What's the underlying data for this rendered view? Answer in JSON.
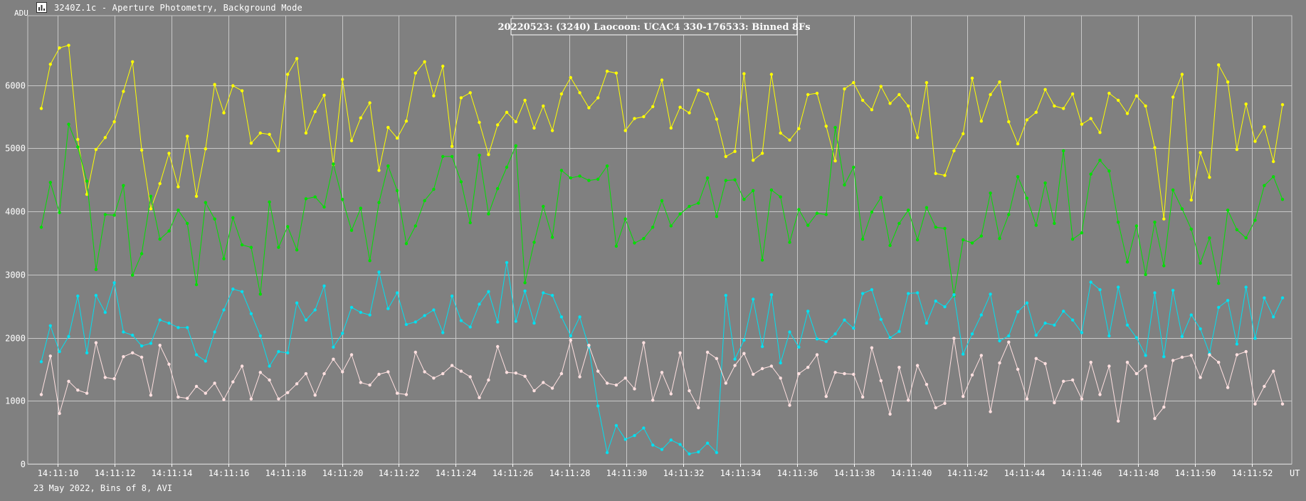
{
  "window": {
    "title": "3240Z.1c - Aperture Photometry, Background Mode",
    "icon": "chart-icon"
  },
  "footer": {
    "note": "23 May 2022, Bins of 8, AVI"
  },
  "colors": {
    "background": "#808080",
    "grid": "#c8c8c8",
    "text": "#ffffff"
  },
  "chart_data": {
    "type": "line",
    "title": "20220523: (3240) Laocoon: UCAC4 330-176533: Binned 8Fs",
    "ylabel": "ADU",
    "xlabel": "UT",
    "ylim": [
      0,
      7100
    ],
    "yticks": [
      0,
      1000,
      2000,
      3000,
      4000,
      5000,
      6000
    ],
    "xticks": [
      "14:11:10",
      "14:11:12",
      "14:11:14",
      "14:11:16",
      "14:11:18",
      "14:11:20",
      "14:11:22",
      "14:11:24",
      "14:11:26",
      "14:11:28",
      "14:11:30",
      "14:11:32",
      "14:11:34",
      "14:11:36",
      "14:11:38",
      "14:11:40",
      "14:11:42",
      "14:11:44",
      "14:11:46",
      "14:11:48",
      "14:11:50",
      "14:11:52"
    ],
    "grid": true,
    "series": [
      {
        "color": "#ffff00",
        "values": [
          5630,
          6330,
          6590,
          6630,
          5140,
          4270,
          4980,
          5170,
          5420,
          5900,
          6370,
          4970,
          4040,
          4440,
          4920,
          4390,
          5190,
          4240,
          4990,
          6010,
          5560,
          5990,
          5910,
          5080,
          5240,
          5220,
          4960,
          6170,
          6420,
          5240,
          5580,
          5840,
          4740,
          6090,
          5120,
          5480,
          5720,
          4650,
          5330,
          5160,
          5430,
          6190,
          6370,
          5830,
          6300,
          5030,
          5800,
          5880,
          5410,
          4900,
          5370,
          5570,
          5420,
          5760,
          5320,
          5670,
          5280,
          5860,
          6120,
          5880,
          5640,
          5800,
          6220,
          6190,
          5280,
          5470,
          5500,
          5660,
          6080,
          5320,
          5650,
          5560,
          5920,
          5860,
          5460,
          4870,
          4950,
          6180,
          4810,
          4920,
          6170,
          5240,
          5130,
          5310,
          5850,
          5870,
          5350,
          4800,
          5940,
          6040,
          5760,
          5610,
          5980,
          5710,
          5850,
          5670,
          5170,
          6040,
          4600,
          4570,
          4960,
          5230,
          6110,
          5430,
          5850,
          6050,
          5420,
          5070,
          5450,
          5570,
          5930,
          5670,
          5630,
          5860,
          5380,
          5470,
          5250,
          5870,
          5760,
          5550,
          5830,
          5670,
          5010,
          3880,
          5810,
          6170,
          4180,
          4930,
          4540,
          6320,
          6050,
          4980,
          5700,
          5110,
          5340,
          4790,
          5690
        ]
      },
      {
        "color": "#00e000",
        "values": [
          3750,
          4460,
          3980,
          5380,
          5020,
          4480,
          3080,
          3950,
          3940,
          4410,
          2990,
          3330,
          4240,
          3560,
          3690,
          4020,
          3810,
          2840,
          4140,
          3880,
          3250,
          3900,
          3470,
          3430,
          2690,
          4150,
          3430,
          3760,
          3390,
          4200,
          4230,
          4070,
          4750,
          4190,
          3700,
          4050,
          3220,
          4140,
          4720,
          4330,
          3490,
          3770,
          4170,
          4350,
          4870,
          4870,
          4470,
          3820,
          4890,
          3960,
          4360,
          4700,
          5040,
          2870,
          3510,
          4080,
          3590,
          4650,
          4530,
          4560,
          4490,
          4510,
          4720,
          3450,
          3880,
          3500,
          3570,
          3750,
          4170,
          3770,
          3960,
          4080,
          4130,
          4530,
          3920,
          4490,
          4500,
          4190,
          4330,
          3230,
          4340,
          4230,
          3510,
          4030,
          3780,
          3970,
          3950,
          5330,
          4420,
          4700,
          3560,
          3990,
          4220,
          3460,
          3810,
          4020,
          3550,
          4060,
          3750,
          3730,
          2660,
          3550,
          3500,
          3610,
          4290,
          3570,
          3950,
          4550,
          4210,
          3780,
          4450,
          3810,
          4960,
          3560,
          3660,
          4590,
          4810,
          4640,
          3830,
          3200,
          3770,
          3000,
          3830,
          3140,
          4340,
          4040,
          3720,
          3180,
          3580,
          2860,
          4020,
          3710,
          3580,
          3860,
          4410,
          4550,
          4190
        ]
      },
      {
        "color": "#00e0f0",
        "values": [
          1620,
          2190,
          1780,
          2020,
          2660,
          1760,
          2670,
          2400,
          2870,
          2090,
          2040,
          1870,
          1910,
          2280,
          2230,
          2160,
          2160,
          1730,
          1630,
          2090,
          2440,
          2770,
          2730,
          2380,
          2030,
          1550,
          1780,
          1760,
          2550,
          2280,
          2440,
          2820,
          1850,
          2070,
          2480,
          2400,
          2360,
          3040,
          2460,
          2710,
          2210,
          2250,
          2350,
          2440,
          2080,
          2660,
          2270,
          2170,
          2530,
          2730,
          2250,
          3190,
          2260,
          2740,
          2230,
          2710,
          2670,
          2330,
          2030,
          2330,
          1850,
          920,
          180,
          610,
          390,
          450,
          570,
          300,
          230,
          380,
          310,
          160,
          190,
          330,
          180,
          2670,
          1660,
          1960,
          2610,
          1860,
          2680,
          1600,
          2090,
          1850,
          2420,
          1980,
          1940,
          2060,
          2280,
          2150,
          2700,
          2760,
          2290,
          2000,
          2100,
          2700,
          2710,
          2230,
          2580,
          2490,
          2680,
          1740,
          2060,
          2360,
          2690,
          1950,
          2030,
          2410,
          2550,
          2040,
          2230,
          2200,
          2420,
          2280,
          2080,
          2880,
          2760,
          2030,
          2800,
          2200,
          2000,
          1720,
          2710,
          1700,
          2750,
          2020,
          2360,
          2140,
          1750,
          2480,
          2590,
          1900,
          2800,
          1990,
          2630,
          2330,
          2630
        ]
      },
      {
        "color": "#ffe0e0",
        "values": [
          1100,
          1710,
          800,
          1310,
          1170,
          1120,
          1920,
          1370,
          1350,
          1700,
          1760,
          1690,
          1090,
          1880,
          1580,
          1060,
          1040,
          1230,
          1120,
          1280,
          1020,
          1300,
          1550,
          1030,
          1450,
          1330,
          1030,
          1130,
          1270,
          1430,
          1090,
          1430,
          1660,
          1460,
          1730,
          1290,
          1250,
          1420,
          1460,
          1120,
          1100,
          1770,
          1460,
          1360,
          1430,
          1560,
          1470,
          1380,
          1050,
          1330,
          1860,
          1450,
          1440,
          1390,
          1160,
          1290,
          1200,
          1430,
          1960,
          1380,
          1880,
          1470,
          1280,
          1250,
          1360,
          1190,
          1920,
          1010,
          1450,
          1110,
          1760,
          1160,
          890,
          1770,
          1670,
          1280,
          1560,
          1750,
          1420,
          1510,
          1550,
          1360,
          930,
          1430,
          1530,
          1730,
          1070,
          1450,
          1430,
          1420,
          1060,
          1840,
          1320,
          790,
          1530,
          1010,
          1560,
          1260,
          890,
          960,
          1990,
          1070,
          1410,
          1720,
          830,
          1600,
          1930,
          1500,
          1030,
          1670,
          1590,
          970,
          1310,
          1330,
          1030,
          1610,
          1100,
          1550,
          680,
          1610,
          1430,
          1550,
          720,
          900,
          1640,
          1690,
          1720,
          1370,
          1730,
          1610,
          1210,
          1730,
          1780,
          950,
          1230,
          1470,
          950
        ]
      }
    ]
  }
}
